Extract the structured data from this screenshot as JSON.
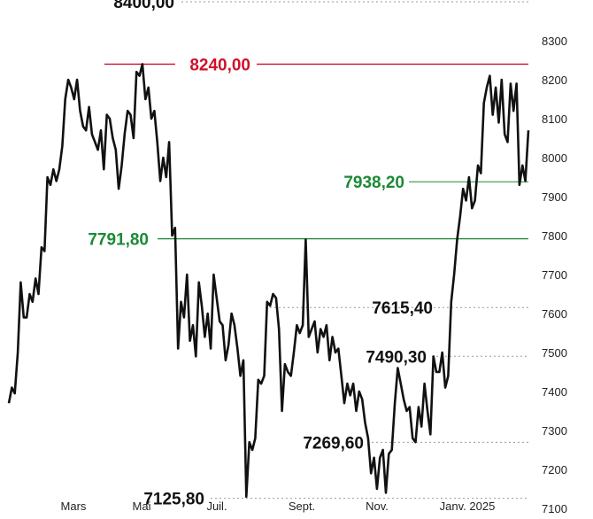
{
  "chart_data": {
    "type": "line",
    "title": "",
    "xlabel": "",
    "ylabel": "",
    "ylim": [
      7100,
      8350
    ],
    "y_ticks": [
      "8300",
      "8200",
      "8100",
      "8000",
      "7900",
      "7800",
      "7700",
      "7600",
      "7500",
      "7400",
      "7300",
      "7200",
      "7100"
    ],
    "x_ticks": [
      "Mars",
      "Mai",
      "Juil.",
      "Sept.",
      "Nov.",
      "Janv. 2025"
    ],
    "series": [
      {
        "values": [
          7370,
          7410,
          7395,
          7500,
          7680,
          7590,
          7590,
          7650,
          7630,
          7690,
          7650,
          7770,
          7760,
          7950,
          7930,
          7970,
          7940,
          7970,
          8030,
          8150,
          8200,
          8180,
          8150,
          8200,
          8120,
          8080,
          8070,
          8130,
          8060,
          8040,
          8020,
          8070,
          7970,
          8110,
          8100,
          8050,
          8020,
          7920,
          7980,
          8060,
          8120,
          8110,
          8050,
          8220,
          8210,
          8240,
          8150,
          8180,
          8100,
          8120,
          8040,
          7940,
          8000,
          7950,
          8040,
          7800,
          7820,
          7510,
          7630,
          7590,
          7700,
          7530,
          7570,
          7490,
          7680,
          7620,
          7540,
          7600,
          7510,
          7700,
          7640,
          7580,
          7570,
          7480,
          7520,
          7600,
          7570,
          7510,
          7440,
          7480,
          7130,
          7270,
          7250,
          7280,
          7430,
          7420,
          7440,
          7630,
          7620,
          7650,
          7640,
          7560,
          7350,
          7470,
          7450,
          7440,
          7500,
          7570,
          7550,
          7570,
          7790,
          7540,
          7560,
          7580,
          7500,
          7560,
          7540,
          7570,
          7480,
          7540,
          7500,
          7510,
          7440,
          7370,
          7420,
          7390,
          7420,
          7350,
          7400,
          7380,
          7320,
          7280,
          7190,
          7230,
          7150,
          7230,
          7250,
          7140,
          7240,
          7250,
          7370,
          7460,
          7420,
          7380,
          7350,
          7360,
          7280,
          7270,
          7360,
          7310,
          7420,
          7350,
          7290,
          7490,
          7450,
          7450,
          7500,
          7410,
          7440,
          7630,
          7700,
          7790,
          7850,
          7920,
          7890,
          7950,
          7870,
          7890,
          7980,
          7960,
          8140,
          8180,
          8210,
          8110,
          8180,
          8090,
          8200,
          8060,
          8040,
          8190,
          8120,
          8190,
          7930,
          7980,
          7940,
          8070
        ]
      }
    ],
    "annotations": [
      {
        "label": "8400,00",
        "value": 8400,
        "color": "#111111"
      },
      {
        "label": "8240,00",
        "value": 8240,
        "color": "#d0112b"
      },
      {
        "label": "7938,20",
        "value": 7938.2,
        "color": "#1a8a35"
      },
      {
        "label": "7791,80",
        "value": 7791.8,
        "color": "#1a8a35"
      },
      {
        "label": "7615,40",
        "value": 7615.4,
        "color": "#111111"
      },
      {
        "label": "7490,30",
        "value": 7490.3,
        "color": "#111111"
      },
      {
        "label": "7269,60",
        "value": 7269.6,
        "color": "#111111"
      },
      {
        "label": "7125,80",
        "value": 7125.8,
        "color": "#111111"
      }
    ],
    "grid": false,
    "colors": {
      "line": "#111111",
      "resistance": "#d0112b",
      "support": "#1a8a35"
    }
  }
}
